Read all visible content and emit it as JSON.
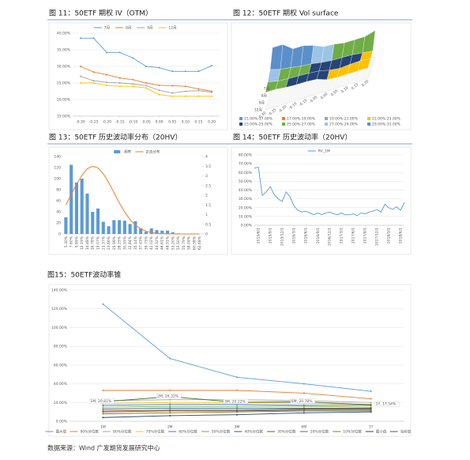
{
  "chart_data": [
    {
      "type": "line",
      "title": "图 11：50ETF 期权 IV（OTM）",
      "x": [
        -0.3,
        -0.25,
        -0.2,
        -0.15,
        -0.1,
        -0.05,
        0,
        0.05,
        0.1,
        0.15,
        0.2
      ],
      "xlim": [
        -0.33,
        0.23
      ],
      "xticks": [
        {
          "value": -0.3,
          "label": "-0.30"
        },
        {
          "value": -0.25,
          "label": "-0.25"
        },
        {
          "value": -0.2,
          "label": "-0.20"
        },
        {
          "value": -0.15,
          "label": "-0.15"
        },
        {
          "value": -0.1,
          "label": "-0.10"
        },
        {
          "value": -0.05,
          "label": "-0.05"
        },
        {
          "value": 0,
          "label": "0.00"
        },
        {
          "value": 0.05,
          "label": "0.05"
        },
        {
          "value": 0.1,
          "label": "0.10"
        },
        {
          "value": 0.15,
          "label": "0.15"
        },
        {
          "value": 0.2,
          "label": "0.20"
        }
      ],
      "ylim": [
        15,
        40
      ],
      "yticks": [
        {
          "value": 15,
          "label": "15.00%"
        },
        {
          "value": 20,
          "label": "20.00%"
        },
        {
          "value": 25,
          "label": "25.00%"
        },
        {
          "value": 30,
          "label": "30.00%"
        },
        {
          "value": 35,
          "label": "35.00%"
        },
        {
          "value": 40,
          "label": "40.00%"
        }
      ],
      "grid": true,
      "legend": "top",
      "series": [
        {
          "name": "7月",
          "color": "#5b9bd5",
          "values": [
            38.5,
            38.5,
            34.2,
            34.2,
            32.5,
            30,
            29.6,
            28.5,
            28.5,
            28.5,
            30.2
          ]
        },
        {
          "name": "8月",
          "color": "#ed7d31",
          "values": [
            30,
            28.3,
            27.5,
            26.5,
            26,
            25,
            24.3,
            24.2,
            24,
            23.2,
            22.5
          ]
        },
        {
          "name": "9月",
          "color": "#a5a5a5",
          "values": [
            27,
            25.7,
            25.2,
            25,
            24.7,
            24.2,
            22.8,
            22,
            22.5,
            22.7,
            22.2
          ]
        },
        {
          "name": "12月",
          "color": "#ffc000",
          "values": [
            25,
            25,
            24.3,
            24,
            24,
            23.5,
            21.5,
            21,
            21,
            21,
            21
          ]
        }
      ]
    },
    {
      "type": "surface",
      "title": "图 12：50ETF 期权 Vol surface",
      "categories": [
        "7月",
        "8月",
        "9月",
        "12月"
      ],
      "x": [
        -0.3,
        -0.25,
        -0.2,
        -0.15,
        -0.1,
        -0.05,
        0,
        0.05,
        0.1,
        0.15,
        0.2
      ],
      "xticks": [
        {
          "value": -0.3,
          "label": "-0.30"
        },
        {
          "value": -0.25,
          "label": "-0.25"
        },
        {
          "value": -0.2,
          "label": "-0.20"
        },
        {
          "value": -0.15,
          "label": "-0.15"
        },
        {
          "value": -0.1,
          "label": "-0.10"
        },
        {
          "value": -0.05,
          "label": "-0.05"
        },
        {
          "value": 0,
          "label": "0.00"
        },
        {
          "value": 0.05,
          "label": "0.05"
        },
        {
          "value": 0.1,
          "label": "0.10"
        },
        {
          "value": 0.15,
          "label": "0.15"
        },
        {
          "value": 0.2,
          "label": "0.20"
        }
      ],
      "z": [
        [
          38.5,
          38.5,
          34.2,
          34.2,
          32.5,
          30,
          29.6,
          28.5,
          28.5,
          28.5,
          30.2
        ],
        [
          30,
          28.3,
          27.5,
          26.5,
          26,
          25,
          24.3,
          24.2,
          24,
          23.2,
          22.5
        ],
        [
          27,
          25.7,
          25.2,
          25,
          24.7,
          24.2,
          22.8,
          22,
          22.5,
          22.7,
          22.2
        ],
        [
          25,
          25,
          24.3,
          24,
          24,
          23.5,
          21.5,
          21,
          21,
          21,
          21
        ]
      ],
      "bands": [
        {
          "from": 15,
          "to": 17,
          "label": "15.00%-17.00%",
          "color": "#5b9bd5"
        },
        {
          "from": 17,
          "to": 19,
          "label": "17.00%-19.00%",
          "color": "#ed7d31"
        },
        {
          "from": 19,
          "to": 21,
          "label": "19.00%-21.00%",
          "color": "#a5a5a5"
        },
        {
          "from": 21,
          "to": 23,
          "label": "21.00%-23.00%",
          "color": "#ffc000"
        },
        {
          "from": 23,
          "to": 25,
          "label": "23.00%-25.00%",
          "color": "#264478"
        },
        {
          "from": 25,
          "to": 27,
          "label": "25.00%-27.00%",
          "color": "#70ad47"
        },
        {
          "from": 27,
          "to": 29,
          "label": "27.00%-29.00%",
          "color": "#9dc3e6"
        },
        {
          "from": 29,
          "to": 31,
          "label": "29.00%-31.00%",
          "color": "#5b8fc9"
        }
      ]
    },
    {
      "type": "combo",
      "title": "图 13：50ETF 历史波动率分布（20HV）",
      "categories": [
        "5.30%",
        "7.60%",
        "9.89%",
        "12.19%",
        "14.48%",
        "16.78%",
        "19.07%",
        "21.37%",
        "23.66%",
        "25.96%",
        "28.25%",
        "30.55%",
        "32.84%",
        "35.14%",
        "37.43%",
        "39.73%",
        "42.02%",
        "44.32%",
        "46.61%",
        "48.91%",
        "51.20%",
        "53.50%",
        "55.79%",
        "58.09%",
        "60.38%",
        "62.68%"
      ],
      "ylim": [
        0,
        140
      ],
      "yticks": [
        0,
        20,
        40,
        60,
        80,
        100,
        120,
        140
      ],
      "y2lim": [
        0,
        4
      ],
      "y2ticks": [
        0,
        0.5,
        1,
        1.5,
        2,
        2.5,
        3,
        3.5,
        4
      ],
      "legend": "top",
      "series": [
        {
          "name": "频率",
          "type": "bar",
          "color": "#5b9bd5",
          "values": [
            30,
            125,
            93,
            100,
            73,
            40,
            46,
            22,
            14,
            25,
            25,
            24,
            18,
            23,
            10,
            4,
            10,
            7,
            6,
            6,
            3,
            1,
            0,
            0,
            0,
            0
          ]
        },
        {
          "name": "正态分布",
          "type": "line",
          "axis": "y2",
          "color": "#ed7d31",
          "values": [
            1.5,
            2.03,
            2.56,
            3.03,
            3.37,
            3.5,
            3.41,
            3.11,
            2.66,
            2.13,
            1.6,
            1.13,
            0.74,
            0.46,
            0.27,
            0.14,
            0.07,
            0.035,
            0.016,
            0.007,
            0.003,
            0.001,
            0,
            0,
            0,
            0
          ]
        }
      ]
    },
    {
      "type": "line",
      "title": "图 14：50ETF 历史波动率（20HV）",
      "x": [
        "2015/5/1",
        "2015/6/1",
        "2015/7/1",
        "2015/8/1",
        "2015/9/1",
        "2015/10/1",
        "2015/11/1",
        "2015/12/1",
        "2016/1/1",
        "2016/2/1",
        "2016/3/1",
        "2016/4/1",
        "2016/5/1",
        "2016/6/1",
        "2016/7/1",
        "2016/8/1",
        "2016/9/1",
        "2016/10/1",
        "2016/11/1",
        "2016/12/1",
        "2017/1/1",
        "2017/2/1",
        "2017/3/1",
        "2017/4/1",
        "2017/5/1",
        "2017/6/1",
        "2017/7/1",
        "2017/8/1",
        "2017/9/1",
        "2017/10/1",
        "2017/11/1",
        "2017/12/1",
        "2018/1/1",
        "2018/2/1",
        "2018/3/1",
        "2018/4/1",
        "2018/5/1",
        "2018/6/1",
        "2018/7/1"
      ],
      "xlim": [
        "2015/5/1",
        "2018/7/1"
      ],
      "xticks": [
        "2015/6/1",
        "2015/9/1",
        "2015/12/1",
        "2016/3/1",
        "2016/6/1",
        "2016/9/1",
        "2016/12/1",
        "2017/3/1",
        "2017/6/1",
        "2017/9/1",
        "2017/12/1",
        "2018/3/1",
        "2018/6/1"
      ],
      "ylim": [
        0,
        80
      ],
      "yticks": [
        {
          "value": 0,
          "label": "0.00%"
        },
        {
          "value": 10,
          "label": "10.00%"
        },
        {
          "value": 20,
          "label": "20.00%"
        },
        {
          "value": 30,
          "label": "30.00%"
        },
        {
          "value": 40,
          "label": "40.00%"
        },
        {
          "value": 50,
          "label": "50.00%"
        },
        {
          "value": 60,
          "label": "60.00%"
        },
        {
          "value": 70,
          "label": "70.00%"
        },
        {
          "value": 80,
          "label": "80.00%"
        }
      ],
      "grid": true,
      "legend": "top",
      "series": [
        {
          "name": "RV_1M",
          "color": "#5b9bd5",
          "values": [
            65,
            66,
            34,
            38,
            44,
            35,
            30,
            27,
            38,
            32,
            22,
            17,
            15,
            16,
            14,
            12,
            14,
            12,
            14,
            15,
            13,
            12,
            14,
            12,
            12,
            13,
            11,
            14,
            13,
            15,
            16,
            18,
            15,
            24,
            20,
            18,
            21,
            17,
            26
          ]
        }
      ]
    },
    {
      "type": "line",
      "title": "图15：50ETF波动率锥",
      "categories": [
        "1M",
        "2M",
        "3M",
        "6M",
        "1Y"
      ],
      "ylim": [
        0,
        140
      ],
      "yticks": [
        {
          "value": 0,
          "label": "0.00%"
        },
        {
          "value": 20,
          "label": "20.00%"
        },
        {
          "value": 40,
          "label": "40.00%"
        },
        {
          "value": 60,
          "label": "60.00%"
        },
        {
          "value": 80,
          "label": "80.00%"
        },
        {
          "value": 100,
          "label": "100.00%"
        },
        {
          "value": 120,
          "label": "120.00%"
        },
        {
          "value": 140,
          "label": "140.00%"
        }
      ],
      "grid": true,
      "legend": "bottom",
      "series": [
        {
          "name": "最大值",
          "color": "#5b9bd5",
          "values": [
            125,
            67,
            47,
            40,
            32
          ]
        },
        {
          "name": "90%分位数",
          "color": "#ed7d31",
          "values": [
            33,
            33,
            33,
            30,
            24
          ]
        },
        {
          "name": "80%分位数",
          "color": "#a5a5a5",
          "values": [
            22,
            23,
            23,
            22,
            20
          ]
        },
        {
          "name": "70%分位数",
          "color": "#ffc000",
          "values": [
            19,
            20,
            20,
            19,
            18
          ]
        },
        {
          "name": "60%分位数",
          "color": "#4472c4",
          "values": [
            17,
            18,
            18,
            17,
            17
          ]
        },
        {
          "name": "50%分位数",
          "color": "#70ad47",
          "values": [
            15,
            16,
            16,
            16,
            15
          ]
        },
        {
          "name": "40%分位数",
          "color": "#255e91",
          "values": [
            13,
            14,
            14,
            14,
            14
          ]
        },
        {
          "name": "30%分位数",
          "color": "#9e480e",
          "values": [
            11,
            12,
            12,
            13,
            13
          ]
        },
        {
          "name": "20%分位数",
          "color": "#636363",
          "values": [
            10,
            11,
            11,
            12,
            12
          ]
        },
        {
          "name": "10%分位数",
          "color": "#997300",
          "values": [
            8,
            9,
            10,
            11,
            11
          ]
        },
        {
          "name": "最小值",
          "color": "#264478",
          "values": [
            4,
            6,
            7,
            9,
            10
          ]
        },
        {
          "name": "当前值",
          "color": "#43682b",
          "values": [
            20.81,
            26.33,
            20.22,
            20.78,
            17.54
          ],
          "value_labels": [
            "1M, 20.81%",
            "2M, 26.33%",
            "3M, 20.22%",
            "6M, 20.78%",
            "1Y, 17.54%"
          ]
        }
      ]
    }
  ],
  "source": "数据来源：Wind 广发期货发展研究中心"
}
